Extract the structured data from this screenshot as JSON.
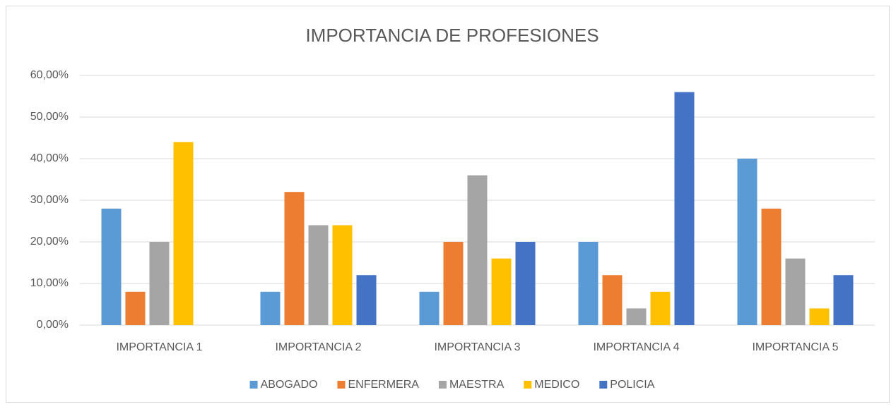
{
  "chart_data": {
    "type": "bar",
    "title": "IMPORTANCIA DE PROFESIONES",
    "categories": [
      "IMPORTANCIA 1",
      "IMPORTANCIA 2",
      "IMPORTANCIA 3",
      "IMPORTANCIA 4",
      "IMPORTANCIA 5"
    ],
    "series": [
      {
        "name": "ABOGADO",
        "color": "#5b9bd5",
        "values": [
          28,
          8,
          8,
          20,
          40
        ]
      },
      {
        "name": "ENFERMERA",
        "color": "#ed7d31",
        "values": [
          8,
          32,
          20,
          12,
          28
        ]
      },
      {
        "name": "MAESTRA",
        "color": "#a5a5a5",
        "values": [
          20,
          24,
          36,
          4,
          16
        ]
      },
      {
        "name": "MEDICO",
        "color": "#ffc000",
        "values": [
          44,
          24,
          16,
          8,
          4
        ]
      },
      {
        "name": "POLICIA",
        "color": "#4472c4",
        "values": [
          0,
          12,
          20,
          56,
          12
        ]
      }
    ],
    "ylim": [
      0,
      60
    ],
    "yticks": [
      {
        "value": 0,
        "label": "0,00%"
      },
      {
        "value": 10,
        "label": "10,00%"
      },
      {
        "value": 20,
        "label": "20,00%"
      },
      {
        "value": 30,
        "label": "30,00%"
      },
      {
        "value": 40,
        "label": "40,00%"
      },
      {
        "value": 50,
        "label": "50,00%"
      },
      {
        "value": 60,
        "label": "60,00%"
      }
    ],
    "grid": true,
    "legend": "bottom"
  }
}
